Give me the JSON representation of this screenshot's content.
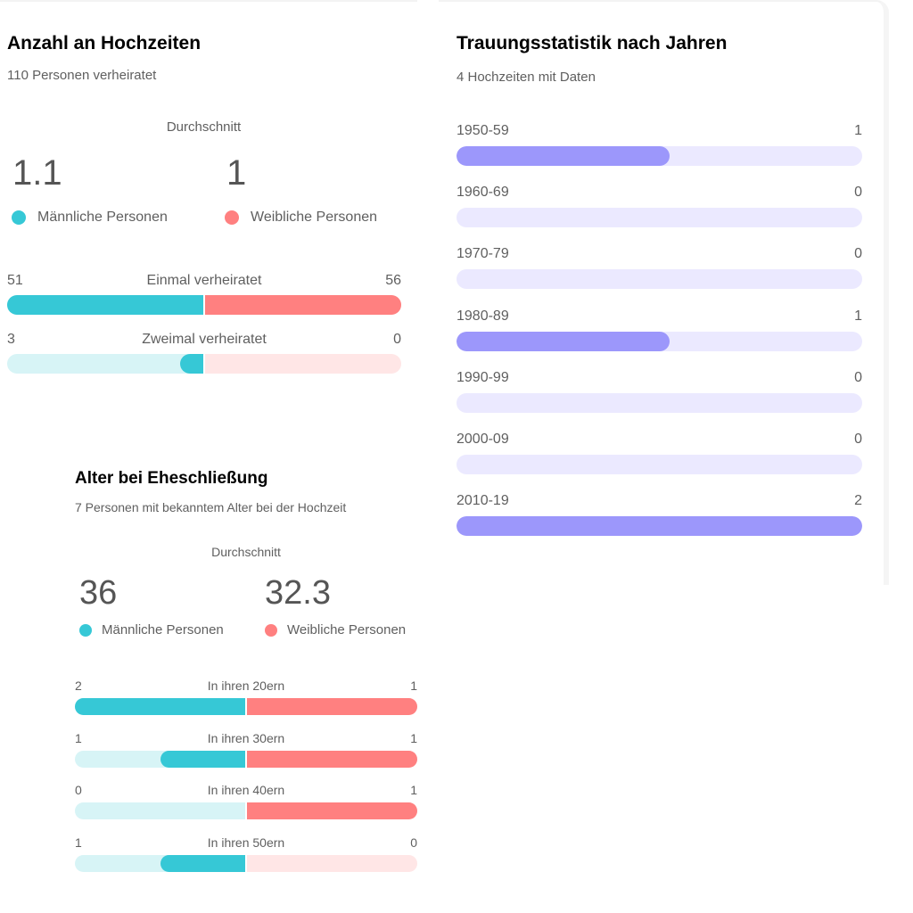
{
  "colors": {
    "male": "#36c8d6",
    "male_light": "#d7f4f6",
    "female": "#ff8080",
    "female_light": "#ffe6e6",
    "year": "#9c97fb",
    "year_light": "#ebe9ff"
  },
  "marriages": {
    "title": "Anzahl an Hochzeiten",
    "subtitle": "110 Personen verheiratet",
    "average_label": "Durchschnitt",
    "male_average": "1.1",
    "female_average": "1",
    "legend_male": "Männliche Personen",
    "legend_female": "Weibliche Personen"
  },
  "ages": {
    "title": "Alter bei Eheschließung",
    "subtitle": "7 Personen mit bekanntem Alter bei der Hochzeit",
    "average_label": "Durchschnitt",
    "male_average": "36",
    "female_average": "32.3",
    "legend_male": "Männliche Personen",
    "legend_female": "Weibliche Personen"
  },
  "years": {
    "title": "Trauungsstatistik nach Jahren",
    "subtitle": "4 Hochzeiten mit Daten"
  },
  "chart_data": [
    {
      "type": "bar",
      "title": "Anzahl an Hochzeiten",
      "orientation": "diverging-horizontal",
      "categories": [
        "Einmal verheiratet",
        "Zweimal verheiratet"
      ],
      "series": [
        {
          "name": "Männliche Personen",
          "values": [
            51,
            3
          ]
        },
        {
          "name": "Weibliche Personen",
          "values": [
            56,
            0
          ]
        }
      ],
      "labels": {
        "male": [
          "51",
          "3"
        ],
        "female": [
          "56",
          "0"
        ]
      }
    },
    {
      "type": "bar",
      "title": "Alter bei Eheschließung",
      "orientation": "diverging-horizontal",
      "categories": [
        "In ihren 20ern",
        "In ihren 30ern",
        "In ihren 40ern",
        "In ihren 50ern"
      ],
      "series": [
        {
          "name": "Männliche Personen",
          "values": [
            2,
            1,
            0,
            1
          ]
        },
        {
          "name": "Weibliche Personen",
          "values": [
            1,
            1,
            1,
            0
          ]
        }
      ],
      "labels": {
        "male": [
          "2",
          "1",
          "0",
          "1"
        ],
        "female": [
          "1",
          "1",
          "1",
          "0"
        ]
      }
    },
    {
      "type": "bar",
      "title": "Trauungsstatistik nach Jahren",
      "orientation": "horizontal",
      "categories": [
        "1950-59",
        "1960-69",
        "1970-79",
        "1980-89",
        "1990-99",
        "2000-09",
        "2010-19"
      ],
      "values": [
        1,
        0,
        0,
        1,
        0,
        0,
        2
      ],
      "labels": [
        "1",
        "0",
        "0",
        "1",
        "0",
        "0",
        "2"
      ]
    }
  ]
}
